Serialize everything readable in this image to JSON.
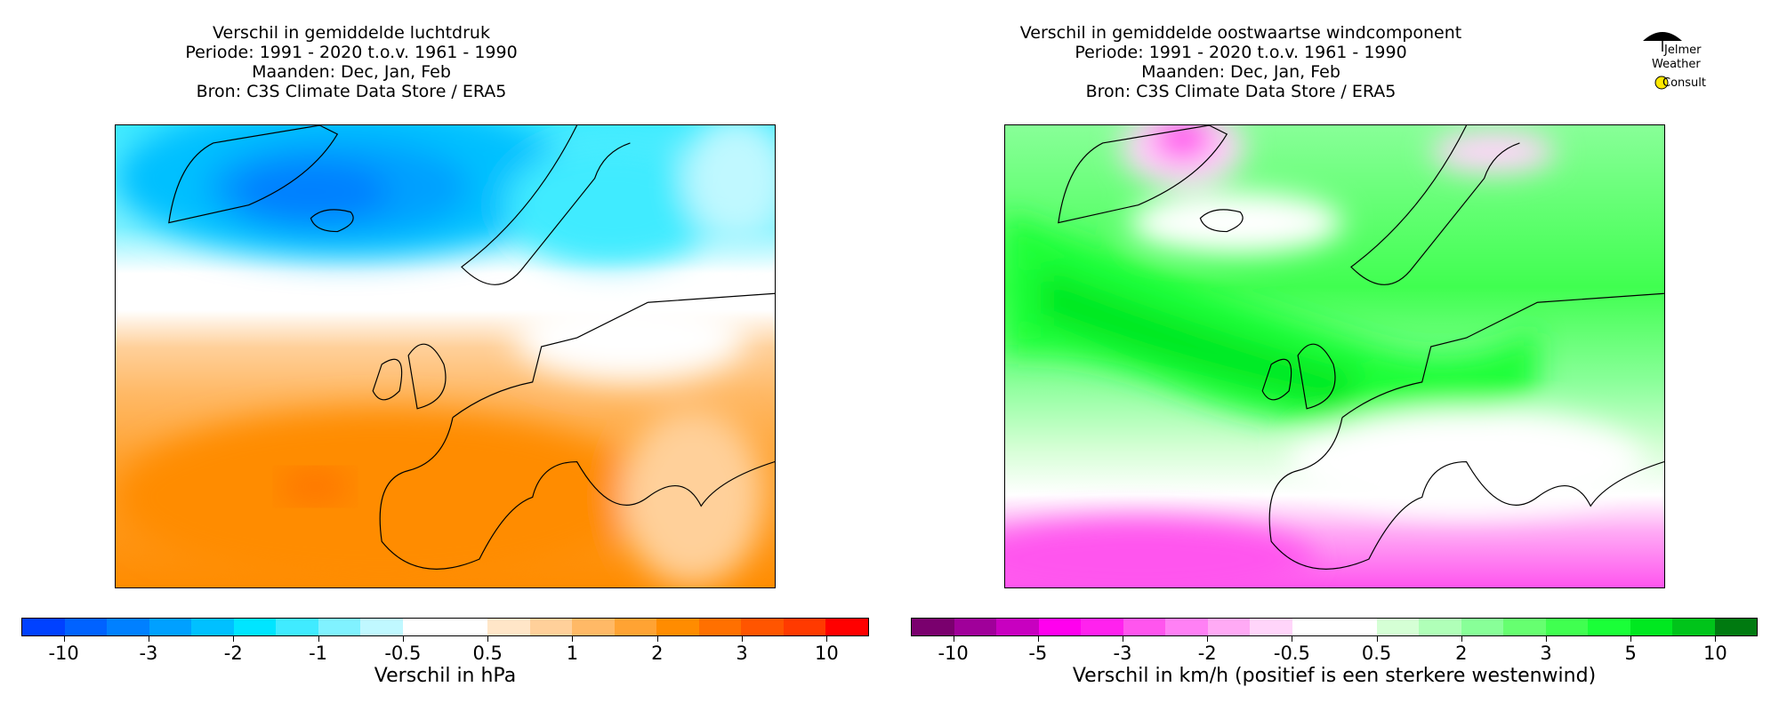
{
  "left_panel": {
    "title_lines": [
      "Verschil in gemiddelde luchtdruk",
      "Periode: 1991 - 2020 t.o.v. 1961 - 1990",
      "Maanden: Dec, Jan, Feb",
      "Bron: C3S Climate Data Store / ERA5"
    ]
  },
  "right_panel": {
    "title_lines": [
      "Verschil in gemiddelde oostwaartse windcomponent",
      "Periode: 1991 - 2020 t.o.v. 1961 - 1990",
      "Maanden: Dec, Jan, Feb",
      "Bron: C3S Climate Data Store / ERA5"
    ]
  },
  "logo": {
    "text_lines": [
      "Jelmer",
      "Weather",
      "Consult"
    ]
  },
  "chart_data": [
    {
      "type": "heatmap",
      "title": "Verschil in gemiddelde luchtdruk",
      "region": "Europe / North Atlantic",
      "colorbar": {
        "label": "Verschil in hPa",
        "tick_labels": [
          "-10",
          "-3",
          "-2",
          "-1",
          "-0.5",
          "0.5",
          "1",
          "2",
          "3",
          "10"
        ],
        "colors": [
          "#0041ff",
          "#0062ff",
          "#0080ff",
          "#00a0ff",
          "#00c0ff",
          "#00e5ff",
          "#40ebff",
          "#80f2ff",
          "#c0f8ff",
          "#ffffff",
          "#ffffff",
          "#ffe6c8",
          "#ffd09a",
          "#ffb966",
          "#ffa333",
          "#ff8c00",
          "#ff7000",
          "#ff5500",
          "#ff3a00",
          "#ff0000"
        ]
      },
      "pattern": {
        "north": "negative (-1 to -3 hPa near Iceland)",
        "south": "positive (+1 to +3 hPa west of Iberia)"
      }
    },
    {
      "type": "heatmap",
      "title": "Verschil in gemiddelde oostwaartse windcomponent",
      "region": "Europe / North Atlantic",
      "colorbar": {
        "label": "Verschil in km/h (positief is een sterkere westenwind)",
        "tick_labels": [
          "-10",
          "-5",
          "-3",
          "-2",
          "-0.5",
          "0.5",
          "2",
          "3",
          "5",
          "10"
        ],
        "colors": [
          "#7a006e",
          "#a0009a",
          "#c800c0",
          "#ff00ee",
          "#ff22ee",
          "#ff55ee",
          "#ff80f5",
          "#ffaaf5",
          "#ffd5fa",
          "#ffffff",
          "#ffffff",
          "#d5ffd5",
          "#b0ffb8",
          "#88ff98",
          "#66ff70",
          "#40ff50",
          "#1aff38",
          "#00e820",
          "#00c41a",
          "#007a10"
        ]
      },
      "pattern": {
        "central_band": "positive (+3 to +5 km/h, Atlantic to North Sea)",
        "south": "negative (-2 to -5 km/h)"
      }
    }
  ]
}
